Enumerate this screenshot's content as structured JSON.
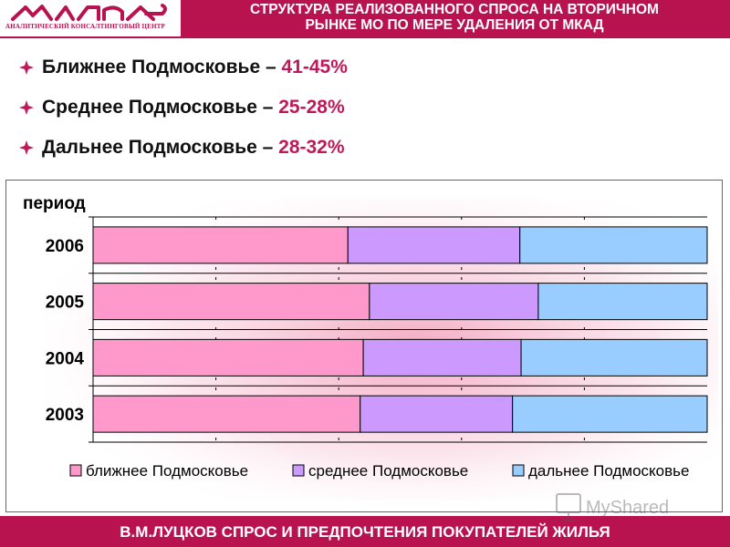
{
  "header": {
    "logo_sub": "АНАЛИТИЧЕСКИЙ КОНСАЛТИНГОВЫЙ ЦЕНТР",
    "title_line1": "СТРУКТУРА РЕАЛИЗОВАННОГО СПРОСА НА ВТОРИЧНОМ",
    "title_line2": "РЫНКЕ МО ПО МЕРЕ УДАЛЕНИЯ ОТ МКАД"
  },
  "bullets": [
    {
      "label": "Ближнее Подмосковье – ",
      "pct": "41-45%"
    },
    {
      "label": "Среднее Подмосковье – ",
      "pct": "25-28%"
    },
    {
      "label": "Дальнее Подмосковье – ",
      "pct": "28-32%"
    }
  ],
  "chart_data": {
    "type": "bar",
    "orientation": "horizontal",
    "stacked": "percent",
    "title": "",
    "ylabel": "период",
    "categories": [
      "2006",
      "2005",
      "2004",
      "2003"
    ],
    "series": [
      {
        "name": "ближнее Подмосковье",
        "values": [
          41.5,
          45,
          44,
          43.5
        ],
        "color": "#ff99cc"
      },
      {
        "name": "среднее Подмосковье",
        "values": [
          28,
          27.5,
          25.7,
          24.8
        ],
        "color": "#cc99ff"
      },
      {
        "name": "дальнее Подмосковье",
        "values": [
          30.5,
          27.5,
          30.3,
          31.7
        ],
        "color": "#99ccff"
      }
    ],
    "xlim": [
      0,
      100
    ],
    "grid": true,
    "legend_position": "bottom"
  },
  "footer": {
    "text": "В.М.ЛУЦКОВ СПРОС И ПРЕДПОЧТЕНИЯ ПОКУПАТЕЛЕЙ ЖИЛЬЯ"
  },
  "watermark": {
    "text": "MyShared"
  },
  "colors": {
    "brand": "#b8124f",
    "accent_text": "#c0185a"
  }
}
